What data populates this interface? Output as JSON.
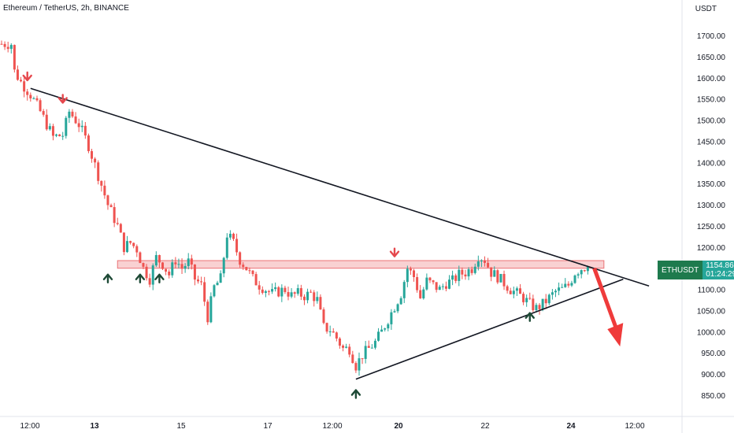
{
  "header": {
    "title": "Ethereum / TetherUS, 2h, BINANCE",
    "unit": "USDT"
  },
  "price_label": {
    "symbol": "ETHUSDT",
    "price": "1154.86",
    "countdown": "01:24:29"
  },
  "colors": {
    "up": "#26a69a",
    "down": "#ef5350",
    "zone_fill": "#f8c9cb",
    "zone_stroke": "#e85b5f",
    "trendline": "#131722",
    "signal_down": "#e5484d",
    "signal_up": "#1e4a36",
    "projection": "#ef3b3b"
  },
  "chart_data": {
    "type": "candlestick",
    "y_axis": {
      "ticks": [
        "1700.00",
        "1650.00",
        "1600.00",
        "1550.00",
        "1500.00",
        "1450.00",
        "1400.00",
        "1350.00",
        "1300.00",
        "1250.00",
        "1200.00",
        "1150.00",
        "1100.00",
        "1050.00",
        "1000.00",
        "950.00",
        "900.00",
        "850.00"
      ],
      "range": [
        830,
        1725
      ]
    },
    "x_axis": {
      "ticks": [
        "12:00",
        "13",
        "15",
        "17",
        "12:00",
        "20",
        "22",
        "24",
        "12:00"
      ],
      "bold_ticks": [
        "13",
        "20",
        "24"
      ]
    },
    "price_path": [
      [
        0,
        1680
      ],
      [
        3,
        1680
      ],
      [
        4,
        1615
      ],
      [
        6,
        1590
      ],
      [
        9,
        1560
      ],
      [
        12,
        1520
      ],
      [
        16,
        1460
      ],
      [
        19,
        1465
      ],
      [
        21,
        1520
      ],
      [
        24,
        1490
      ],
      [
        27,
        1440
      ],
      [
        30,
        1370
      ],
      [
        33,
        1300
      ],
      [
        36,
        1250
      ],
      [
        38,
        1200
      ],
      [
        40,
        1210
      ],
      [
        42,
        1195
      ],
      [
        44,
        1150
      ],
      [
        46,
        1125
      ],
      [
        48,
        1175
      ],
      [
        50,
        1160
      ],
      [
        52,
        1135
      ],
      [
        54,
        1170
      ],
      [
        56,
        1150
      ],
      [
        58,
        1165
      ],
      [
        60,
        1125
      ],
      [
        62,
        1110
      ],
      [
        64,
        1035
      ],
      [
        66,
        1105
      ],
      [
        68,
        1125
      ],
      [
        70,
        1230
      ],
      [
        72,
        1210
      ],
      [
        74,
        1170
      ],
      [
        76,
        1150
      ],
      [
        78,
        1125
      ],
      [
        80,
        1110
      ],
      [
        82,
        1100
      ],
      [
        84,
        1090
      ],
      [
        86,
        1095
      ],
      [
        88,
        1100
      ],
      [
        90,
        1085
      ],
      [
        92,
        1090
      ],
      [
        94,
        1085
      ],
      [
        96,
        1090
      ],
      [
        98,
        1075
      ],
      [
        100,
        1010
      ],
      [
        102,
        1005
      ],
      [
        104,
        985
      ],
      [
        106,
        960
      ],
      [
        108,
        960
      ],
      [
        110,
        920
      ],
      [
        112,
        945
      ],
      [
        114,
        960
      ],
      [
        116,
        975
      ],
      [
        118,
        1000
      ],
      [
        120,
        1030
      ],
      [
        122,
        1060
      ],
      [
        124,
        1090
      ],
      [
        126,
        1150
      ],
      [
        128,
        1130
      ],
      [
        130,
        1080
      ],
      [
        132,
        1120
      ],
      [
        134,
        1110
      ],
      [
        136,
        1100
      ],
      [
        138,
        1115
      ],
      [
        140,
        1120
      ],
      [
        142,
        1135
      ],
      [
        144,
        1140
      ],
      [
        146,
        1150
      ],
      [
        148,
        1180
      ],
      [
        150,
        1170
      ],
      [
        152,
        1140
      ],
      [
        154,
        1130
      ],
      [
        156,
        1115
      ],
      [
        158,
        1100
      ],
      [
        160,
        1090
      ],
      [
        162,
        1080
      ],
      [
        164,
        1065
      ],
      [
        166,
        1055
      ],
      [
        168,
        1065
      ],
      [
        170,
        1080
      ],
      [
        172,
        1095
      ],
      [
        174,
        1100
      ],
      [
        176,
        1110
      ],
      [
        178,
        1140
      ],
      [
        180,
        1150
      ],
      [
        182,
        1154.86
      ]
    ],
    "resistance_zone": [
      1150,
      1168
    ],
    "trendlines": [
      {
        "name": "descending",
        "from": [
          9,
          1575
        ],
        "to": [
          201,
          1108
        ]
      },
      {
        "name": "ascending",
        "from": [
          110,
          888
        ],
        "to": [
          193,
          1124
        ]
      }
    ],
    "projection_arrow": {
      "from": [
        184,
        1150
      ],
      "to": [
        192,
        965
      ]
    },
    "signals_down": [
      [
        8,
        1594
      ],
      [
        19,
        1541
      ],
      [
        122,
        1178
      ]
    ],
    "signals_up": [
      [
        33,
        1135
      ],
      [
        43,
        1135
      ],
      [
        49,
        1135
      ],
      [
        110,
        862
      ],
      [
        164,
        1044
      ]
    ],
    "last_price": 1154.86
  }
}
